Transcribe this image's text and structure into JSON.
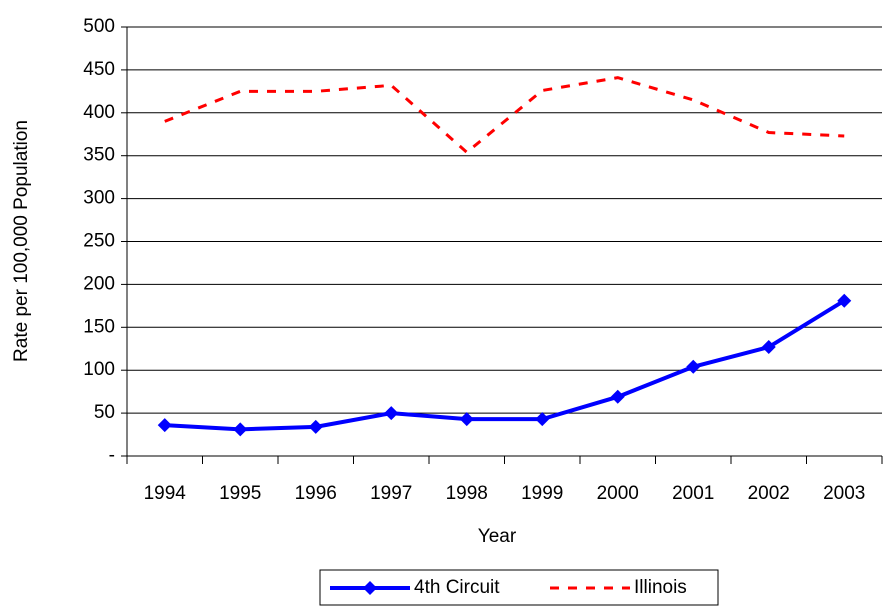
{
  "chart_data": {
    "type": "line",
    "xlabel": "Year",
    "ylabel": "Rate per 100,000 Population",
    "categories": [
      "1994",
      "1995",
      "1996",
      "1997",
      "1998",
      "1999",
      "2000",
      "2001",
      "2002",
      "2003"
    ],
    "series": [
      {
        "name": "4th Circuit",
        "color": "#0000ff",
        "style": "solid",
        "marker": "diamond",
        "values": [
          36,
          31,
          34,
          50,
          43,
          43,
          69,
          104,
          127,
          181
        ]
      },
      {
        "name": "Illinois",
        "color": "#ff0000",
        "style": "dashed",
        "values": [
          390,
          425,
          425,
          432,
          354,
          426,
          441,
          415,
          377,
          373
        ]
      }
    ],
    "ylim": [
      0,
      500
    ],
    "yticks": [
      {
        "value": 0,
        "label": "-"
      },
      50,
      100,
      150,
      200,
      250,
      300,
      350,
      400,
      450,
      500
    ],
    "grid": true,
    "legend": "bottom"
  }
}
